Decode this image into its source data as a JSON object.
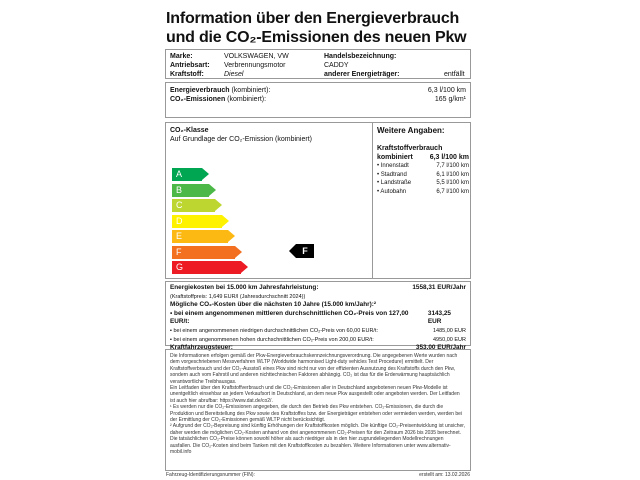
{
  "title": {
    "line1": "Information über den Energieverbrauch",
    "line2": "und die CO₂-Emissionen des neuen Pkw"
  },
  "vehicle": {
    "marke_label": "Marke:",
    "marke": "VOLKSWAGEN, VW",
    "antrieb_label": "Antriebsart:",
    "antrieb": "Verbrennungsmotor",
    "kraftstoff_label": "Kraftstoff:",
    "kraftstoff": "Diesel",
    "handel_label": "Handelsbezeichnung:",
    "handel": "CADDY",
    "anderer_label": "anderer Energieträger:",
    "anderer": "entfällt"
  },
  "consumption": {
    "energie_label": "Energieverbrauch",
    "energie_suffix": " (kombiniert):",
    "energie_value": "6,3 l/100 km",
    "co2_label": "CO₂-Emissionen",
    "co2_suffix": " (kombiniert):",
    "co2_value": "165 g/km¹"
  },
  "co2class": {
    "title": "CO₂-Klasse",
    "subtitle": "Auf Grundlage der CO₂-Emission (kombiniert)",
    "classes": [
      {
        "label": "A",
        "color": "#00a651"
      },
      {
        "label": "B",
        "color": "#4cb848"
      },
      {
        "label": "C",
        "color": "#bed630"
      },
      {
        "label": "D",
        "color": "#fff200"
      },
      {
        "label": "E",
        "color": "#fdb913"
      },
      {
        "label": "F",
        "color": "#f37021"
      },
      {
        "label": "G",
        "color": "#ed1c24"
      }
    ],
    "current": "F"
  },
  "further": {
    "title": "Weitere Angaben:",
    "heading": "Kraftstoffverbrauch",
    "kombiniert_label": "kombiniert",
    "kombiniert_value": "6,3 l/100 km",
    "items": [
      {
        "label": "• Innenstadt",
        "value": "7,7 l/100 km"
      },
      {
        "label": "• Stadtrand",
        "value": "6,1 l/100 km"
      },
      {
        "label": "• Landstraße",
        "value": "5,5 l/100 km"
      },
      {
        "label": "• Autobahn",
        "value": "6,7 l/100 km"
      }
    ]
  },
  "costs": {
    "energy_label": "Energiekosten bei 15.000 km Jahresfahrleistung:",
    "energy_value": "1558,31 EUR/Jahr",
    "price_note": "(Kraftstoffpreis: 1,649 EUR/l (Jahresdurchschnitt 2024))",
    "co2_heading": "Mögliche CO₂-Kosten über die nächsten 10 Jahre (15.000 km/Jahr):²",
    "mid_label": "▪ bei einem angenommenen mittleren durchschnittlichen CO₂-Preis von 127,00 EUR/t:",
    "mid_value": "3143,25 EUR",
    "low_label": "▪ bei einem angenommenen niedrigen durchschnittlichen CO₂-Preis von 60,00 EUR/t:",
    "low_value": "1485,00 EUR",
    "high_label": "▪ bei einem angenommenen hohen durchschnittlichen CO₂-Preis von 200,00 EUR/t:",
    "high_value": "4950,00 EUR",
    "tax_label": "Kraftfahrzeugsteuer:",
    "tax_value": "353,00 EUR/Jahr"
  },
  "notes": {
    "p1": "Die Informationen erfolgen gemäß der Pkw-Energieverbrauchskennzeichnungsverordnung. Die angegebenen Werte wurden nach dem vorgeschriebenen Messverfahren WLTP (Worldwide harmonised Light-duty vehicles Test Procedure) ermittelt. Der Kraftstoffverbrauch und der CO₂-Ausstoß eines Pkw sind nicht nur von der effizienten Ausnutzung des Kraftstoffs durch den Pkw, sondern auch vom Fahrstil und anderen nichttechnischen Faktoren abhängig. CO₂ ist das für die Erderwärmung hauptsächlich verantwortliche Treibhausgas.",
    "p2": "Ein Leitfaden über den Kraftstoffverbrauch und die CO₂-Emissionen aller in Deutschland angebotenen neuen Pkw-Modelle ist unentgeltlich einsehbar an jedem Verkaufsort in Deutschland, an dem neue Pkw ausgestellt oder angeboten werden. Der Leitfaden ist auch hier abrufbar: https://www.dat.de/co2/.",
    "p3": "¹ Es werden nur die CO₂-Emissionen angegeben, die durch den Betrieb des Pkw entstehen. CO₂-Emissionen, die durch die Produktion und Bereitstellung des Pkw sowie des Kraftstoffes bzw. der Energieträger entstehen oder vermieden werden, werden bei der Ermittlung der CO₂-Emissionen gemäß WLTP nicht berücksichtigt.",
    "p4": "² Aufgrund der CO₂-Bepreisung sind künftig Erhöhungen der Kraftstoffkosten möglich. Die künftige CO₂-Preisentwicklung ist unsicher, daher werden die möglichen CO₂-Kosten anhand von drei angenommenen CO₂-Preisen für den Zeitraum 2026 bis 2035 berechnet. Die tatsächlichen CO₂-Preise können sowohl höher als auch niedriger als in den hier zugrundeliegenden Modellrechnungen ausfallen. Die CO₂-Kosten sind beim Tanken mit den Kraftstoffkosten zu bezahlen. Weitere Informationen unter www.alternativ-mobil.info"
  },
  "footer": {
    "fin": "Fahrzeug-Identifizierungsnummer (FIN):",
    "created": "erstellt am: 13.02.2026"
  }
}
